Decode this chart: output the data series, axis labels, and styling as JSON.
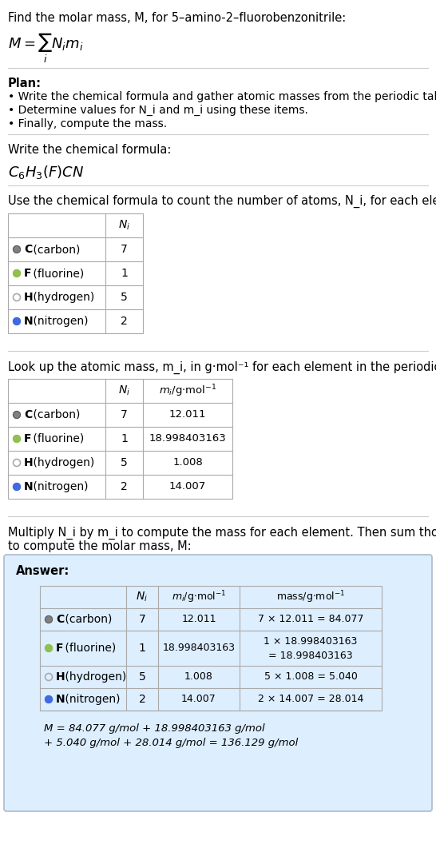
{
  "title_line": "Find the molar mass, M, for 5–amino-2–fluorobenzonitrile:",
  "plan_header": "Plan:",
  "plan_bullets": [
    "• Write the chemical formula and gather atomic masses from the periodic table.",
    "• Determine values for N_i and m_i using these items.",
    "• Finally, compute the mass."
  ],
  "formula_section_label": "Write the chemical formula:",
  "count_section_label": "Use the chemical formula to count the number of atoms, N_i, for each element:",
  "atomic_mass_section_label": "Look up the atomic mass, m_i, in g·mol⁻¹ for each element in the periodic table:",
  "multiply_section_label_1": "Multiply N_i by m_i to compute the mass for each element. Then sum those values",
  "multiply_section_label_2": "to compute the molar mass, M:",
  "elements": [
    "C (carbon)",
    "F (fluorine)",
    "H (hydrogen)",
    "N (nitrogen)"
  ],
  "dot_colors": [
    "#808080",
    "#90C050",
    "#ffffff",
    "#4169E1"
  ],
  "dot_filled": [
    true,
    true,
    false,
    true
  ],
  "N_i": [
    7,
    1,
    5,
    2
  ],
  "m_i": [
    "12.011",
    "18.998403163",
    "1.008",
    "14.007"
  ],
  "mass_col_line1": [
    "7 × 12.011 = 84.077",
    "1 × 18.998403163",
    "5 × 1.008 = 5.040",
    "2 × 14.007 = 28.014"
  ],
  "mass_col_line2": [
    "",
    "= 18.998403163",
    "",
    ""
  ],
  "answer_box_color": "#ddeeff",
  "answer_box_border": "#aabbcc",
  "final_eq_line1": "M = 84.077 g/mol + 18.998403163 g/mol",
  "final_eq_line2": "+ 5.040 g/mol + 28.014 g/mol = 136.129 g/mol",
  "bg_color": "#ffffff",
  "text_color": "#000000",
  "table_border_color": "#aaaaaa",
  "separator_color": "#cccccc"
}
